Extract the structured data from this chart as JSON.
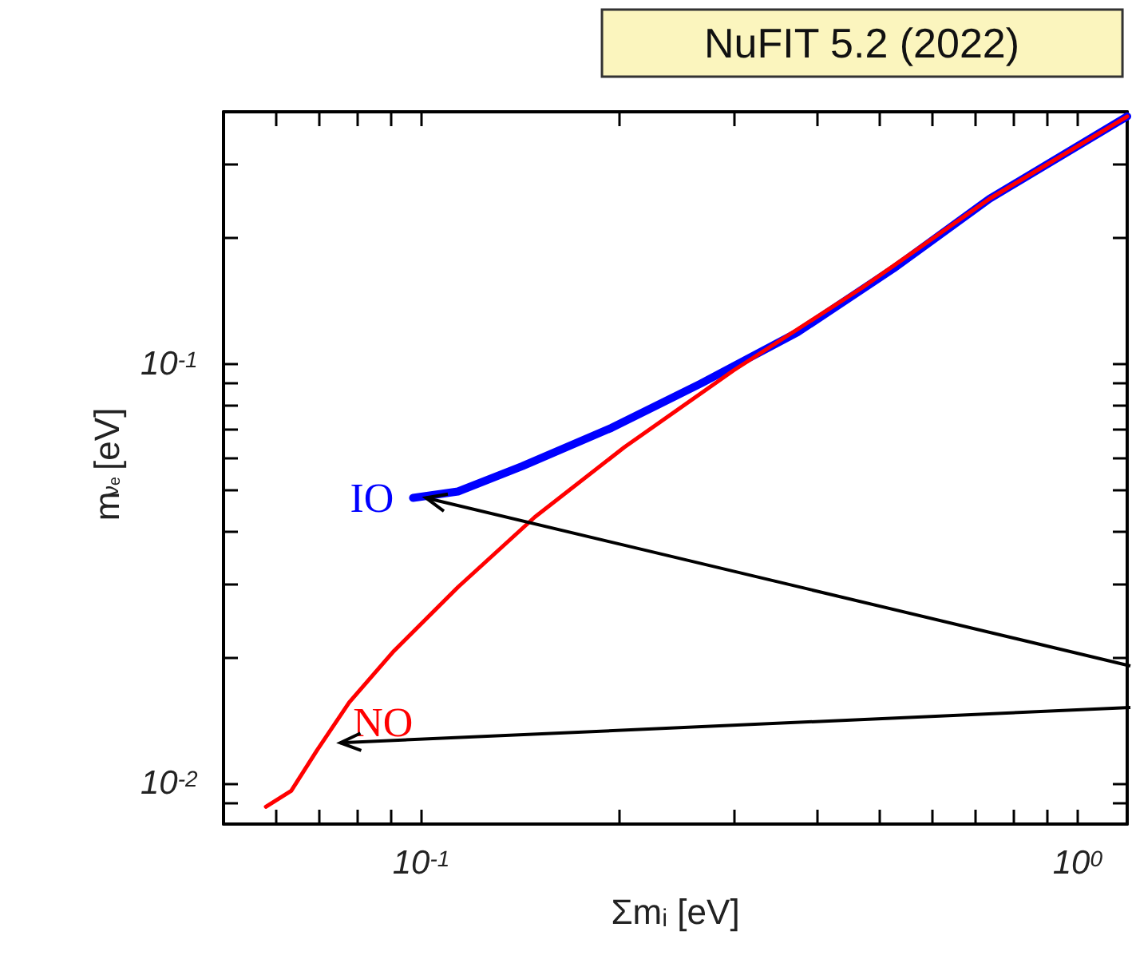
{
  "chart_data": {
    "type": "line",
    "title": "NuFIT 5.2 (2022)",
    "xlabel": "Σmᵢ [eV]",
    "ylabel": "m$_{νₑ}$ [eV]",
    "log": "xy",
    "grid": false,
    "marker": "none",
    "line_style": "solid",
    "xlim": [
      0.05,
      1.19
    ],
    "ylim": [
      0.008,
      0.4
    ],
    "xticks": [
      {
        "value": 0.06,
        "label": null
      },
      {
        "value": 0.07,
        "label": null
      },
      {
        "value": 0.08,
        "label": null
      },
      {
        "value": 0.09,
        "label": null
      },
      {
        "value": 0.1,
        "label": "10$^{-1}$"
      },
      {
        "value": 0.2,
        "label": null
      },
      {
        "value": 0.3,
        "label": null
      },
      {
        "value": 0.4,
        "label": null
      },
      {
        "value": 0.5,
        "label": null
      },
      {
        "value": 0.6,
        "label": null
      },
      {
        "value": 0.7,
        "label": null
      },
      {
        "value": 0.8,
        "label": null
      },
      {
        "value": 0.9,
        "label": null
      },
      {
        "value": 1,
        "label": "10$^{0}$"
      }
    ],
    "yticks": [
      {
        "value": 0.009,
        "label": null
      },
      {
        "value": 0.01,
        "label": "10$^{-2}$"
      },
      {
        "value": 0.02,
        "label": null
      },
      {
        "value": 0.03,
        "label": null
      },
      {
        "value": 0.04,
        "label": null
      },
      {
        "value": 0.05,
        "label": null
      },
      {
        "value": 0.06,
        "label": null
      },
      {
        "value": 0.07,
        "label": null
      },
      {
        "value": 0.08,
        "label": null
      },
      {
        "value": 0.09,
        "label": null
      },
      {
        "value": 0.1,
        "label": "10$^{-1}$"
      },
      {
        "value": 0.2,
        "label": null
      },
      {
        "value": 0.3,
        "label": null
      }
    ],
    "series": [
      {
        "color": "#ff0000",
        "x": [
          0.058,
          0.0634,
          0.0694,
          0.0777,
          0.0909,
          0.1138,
          0.149,
          0.204,
          0.299,
          0.469,
          0.734,
          1.19
        ],
        "values": [
          0.0088,
          0.0096,
          0.012,
          0.0156,
          0.0207,
          0.0294,
          0.0432,
          0.0634,
          0.0966,
          0.152,
          0.248,
          0.39
        ]
      },
      {
        "color": "#0000ff",
        "x": [
          0.0972,
          0.1138,
          0.1425,
          0.195,
          0.267,
          0.374,
          0.524,
          0.734,
          1.19
        ],
        "values": [
          0.048,
          0.0497,
          0.0571,
          0.0705,
          0.09,
          0.119,
          0.169,
          0.248,
          0.39
        ]
      }
    ],
    "annotations": [
      {
        "text": "IO",
        "x": 0.0972,
        "y": 0.048
      },
      {
        "text": "NO",
        "x": 0.072,
        "y": 0.0125
      }
    ]
  }
}
